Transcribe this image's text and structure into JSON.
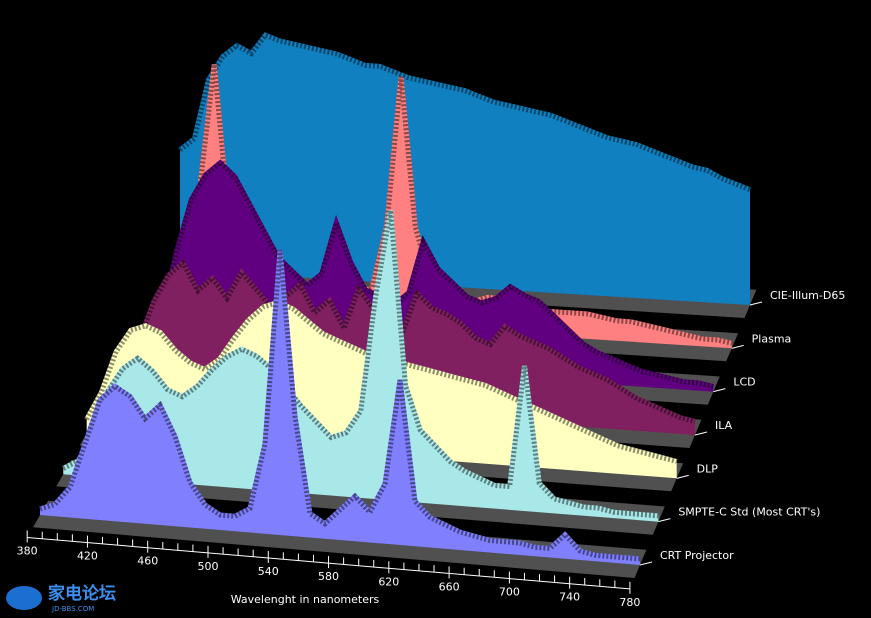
{
  "chart_data": {
    "type": "waterfall3d",
    "x_label": "Wavelenght in nanometers",
    "x": [
      380,
      390,
      400,
      410,
      420,
      430,
      440,
      450,
      460,
      470,
      480,
      490,
      500,
      510,
      520,
      530,
      540,
      550,
      560,
      570,
      580,
      590,
      600,
      610,
      620,
      630,
      640,
      650,
      660,
      670,
      680,
      690,
      700,
      710,
      720,
      730,
      740,
      750,
      760,
      770,
      780
    ],
    "xlim": [
      380,
      780
    ],
    "xticks": [
      380,
      420,
      460,
      500,
      540,
      580,
      620,
      660,
      700,
      740,
      780
    ],
    "ylim": [
      0,
      100
    ],
    "series": [
      {
        "name": "CRT Projector",
        "color": "#8080ff",
        "values": [
          2,
          4,
          10,
          25,
          40,
          45,
          42,
          35,
          40,
          30,
          15,
          8,
          5,
          5,
          8,
          30,
          95,
          40,
          8,
          5,
          10,
          15,
          10,
          20,
          55,
          15,
          10,
          8,
          6,
          5,
          4,
          4,
          4,
          3,
          3,
          8,
          3,
          2,
          2,
          2,
          2
        ]
      },
      {
        "name": "SMPTE-C Std (Most CRT's)",
        "color": "#a8e8e8",
        "values": [
          2,
          5,
          15,
          30,
          38,
          42,
          38,
          32,
          30,
          34,
          40,
          45,
          48,
          46,
          42,
          36,
          30,
          25,
          20,
          22,
          30,
          70,
          100,
          40,
          25,
          20,
          15,
          12,
          10,
          8,
          8,
          50,
          10,
          5,
          4,
          3,
          3,
          2,
          2,
          2,
          2
        ]
      },
      {
        "name": "DLP",
        "color": "#ffffc0",
        "values": [
          5,
          15,
          30,
          38,
          40,
          38,
          32,
          28,
          26,
          30,
          38,
          45,
          50,
          52,
          50,
          46,
          42,
          40,
          38,
          36,
          35,
          34,
          33,
          32,
          31,
          30,
          29,
          28,
          26,
          24,
          22,
          20,
          18,
          16,
          14,
          12,
          10,
          9,
          8,
          7,
          6
        ]
      },
      {
        "name": "ILA",
        "color": "#802060",
        "values": [
          3,
          8,
          20,
          35,
          45,
          50,
          40,
          45,
          38,
          48,
          42,
          36,
          40,
          45,
          35,
          40,
          30,
          45,
          38,
          35,
          30,
          45,
          40,
          38,
          35,
          30,
          28,
          35,
          32,
          30,
          28,
          25,
          22,
          20,
          18,
          15,
          12,
          10,
          8,
          6,
          5
        ]
      },
      {
        "name": "LCD",
        "color": "#600080",
        "values": [
          2,
          5,
          15,
          40,
          60,
          70,
          75,
          70,
          60,
          50,
          40,
          35,
          30,
          35,
          55,
          40,
          30,
          28,
          25,
          30,
          50,
          40,
          35,
          30,
          28,
          30,
          35,
          32,
          30,
          25,
          20,
          15,
          12,
          10,
          8,
          6,
          5,
          4,
          3,
          3,
          2
        ]
      },
      {
        "name": "Plasma",
        "color": "#ff8080",
        "values": [
          2,
          5,
          20,
          50,
          100,
          40,
          30,
          25,
          20,
          15,
          12,
          10,
          10,
          10,
          12,
          15,
          40,
          100,
          40,
          20,
          15,
          12,
          12,
          14,
          14,
          12,
          12,
          10,
          10,
          10,
          10,
          9,
          8,
          8,
          7,
          6,
          5,
          4,
          3,
          3,
          2
        ]
      },
      {
        "name": "CIE-Illum-D65",
        "color": "#1080c0",
        "values": [
          50,
          55,
          80,
          90,
          95,
          92,
          100,
          98,
          97,
          96,
          95,
          94,
          92,
          90,
          90,
          88,
          86,
          85,
          84,
          83,
          82,
          80,
          78,
          77,
          76,
          75,
          74,
          72,
          70,
          68,
          66,
          65,
          64,
          62,
          60,
          58,
          56,
          55,
          52,
          50,
          48
        ]
      }
    ]
  },
  "watermark": {
    "logo": "家电论坛",
    "site": "JD-BBS.COM"
  }
}
